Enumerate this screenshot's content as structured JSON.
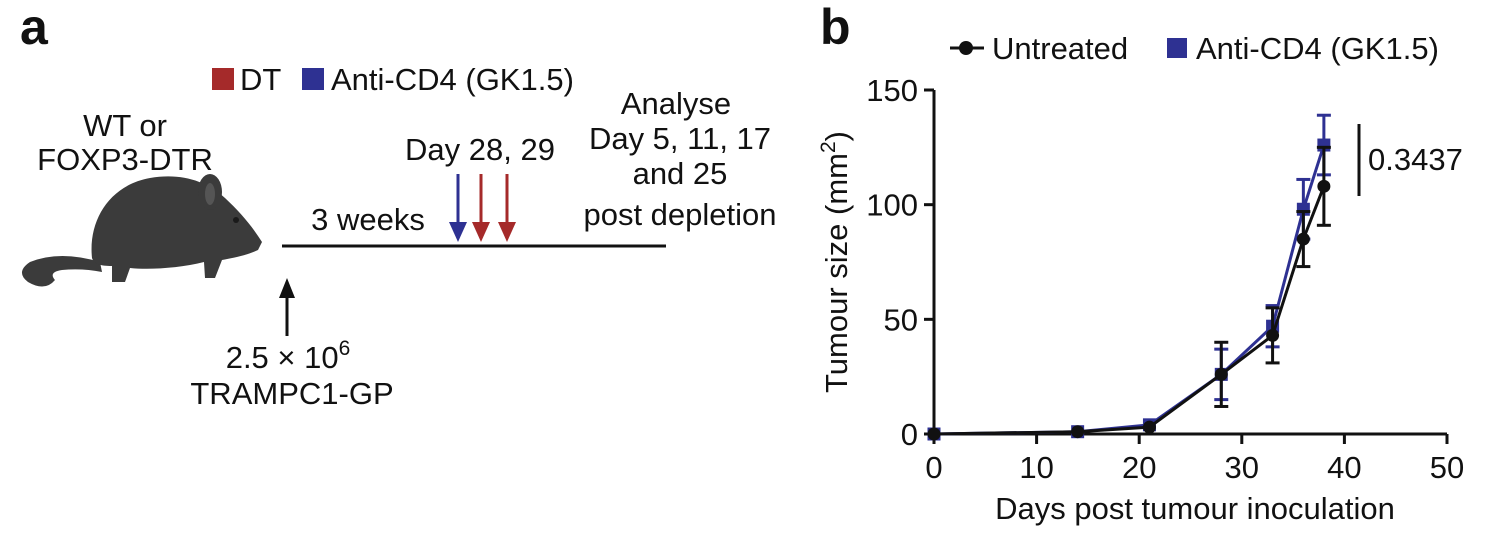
{
  "panel_a": {
    "letter": "a",
    "legend": {
      "dt_label": "DT",
      "dt_color": "#a52a2a",
      "cd4_label": "Anti-CD4 (GK1.5)",
      "cd4_color": "#2e3192"
    },
    "mouse_label_1": "WT or",
    "mouse_label_2": "FOXP3-DTR",
    "timeline_label": "3 weeks",
    "treatment_days": "Day 28, 29",
    "analyse_1": "Analyse",
    "analyse_2": "Day 5, 11, 17",
    "analyse_3": "and 25",
    "analyse_4": "post depletion",
    "inoc_dose_base": "2.5 × 10",
    "inoc_dose_exp": "6",
    "inoc_cells": "TRAMPC1-GP"
  },
  "panel_b": {
    "letter": "b",
    "pvalue": "0.3437"
  },
  "chart_data": {
    "type": "line",
    "title": "",
    "xlabel": "Days post tumour inoculation",
    "ylabel_main": "Tumour size (mm",
    "ylabel_exp": "2",
    "ylabel_close": ")",
    "xlim": [
      0,
      50
    ],
    "ylim": [
      0,
      150
    ],
    "xticks": [
      0,
      10,
      20,
      30,
      40,
      50
    ],
    "yticks": [
      0,
      50,
      100,
      150
    ],
    "legend_position": "top",
    "series": [
      {
        "name": "Untreated",
        "color": "#111111",
        "marker": "circle",
        "x": [
          0,
          14,
          21,
          28,
          33,
          36,
          38
        ],
        "y": [
          0,
          1,
          3,
          26,
          43,
          85,
          108
        ],
        "err": [
          0,
          0.5,
          1,
          14,
          12,
          12,
          17
        ]
      },
      {
        "name": "Anti-CD4 (GK1.5)",
        "color": "#2e3192",
        "marker": "square",
        "x": [
          0,
          14,
          21,
          28,
          33,
          36,
          38
        ],
        "y": [
          0,
          1,
          4,
          26,
          47,
          98,
          126
        ],
        "err": [
          0,
          0.5,
          1,
          11,
          9,
          13,
          13
        ]
      }
    ]
  }
}
